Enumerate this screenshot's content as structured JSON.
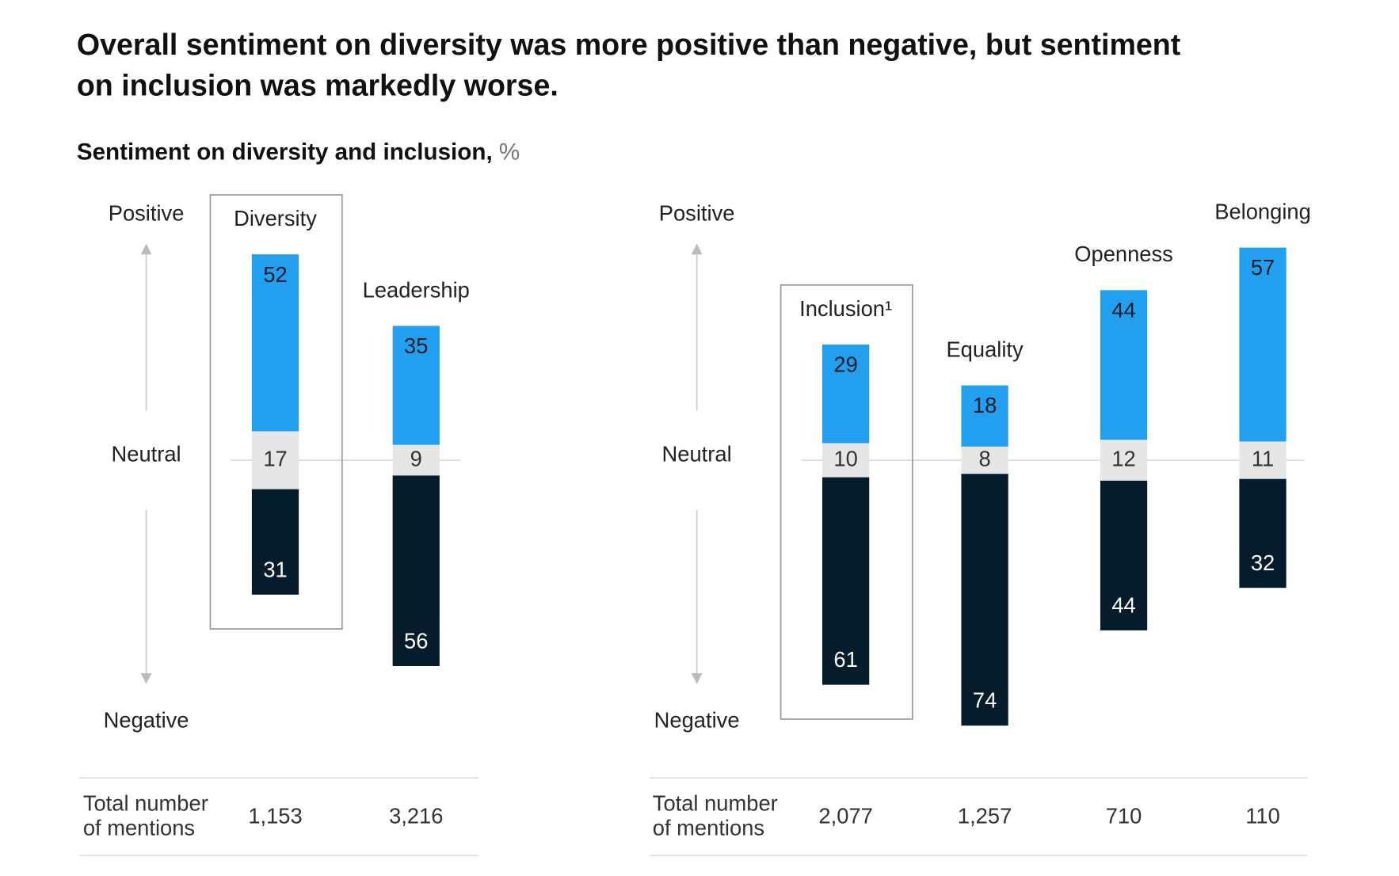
{
  "title": [
    "Overall sentiment on diversity was more positive than negative, but sentiment",
    "on inclusion was markedly worse."
  ],
  "subtitle": "Sentiment on diversity and inclusion,",
  "unit": "%",
  "chart_data": [
    {
      "type": "diverging-bar",
      "categories": [
        "Diversity",
        "Leadership"
      ],
      "highlight": 0,
      "series": [
        {
          "name": "Positive",
          "color": "#22a0ef",
          "values": [
            52,
            35
          ]
        },
        {
          "name": "Neutral",
          "color": "#e6e6e6",
          "values": [
            17,
            9
          ]
        },
        {
          "name": "Negative",
          "color": "#051c2c",
          "values": [
            31,
            56
          ]
        }
      ],
      "totals_label": [
        "Total number",
        "of mentions"
      ],
      "totals": [
        "1,153",
        "3,216"
      ]
    },
    {
      "type": "diverging-bar",
      "categories": [
        "Inclusion¹",
        "Equality",
        "Openness",
        "Belonging"
      ],
      "highlight": 0,
      "series": [
        {
          "name": "Positive",
          "color": "#22a0ef",
          "values": [
            29,
            18,
            44,
            57
          ]
        },
        {
          "name": "Neutral",
          "color": "#e6e6e6",
          "values": [
            10,
            8,
            12,
            11
          ]
        },
        {
          "name": "Negative",
          "color": "#051c2c",
          "values": [
            61,
            74,
            44,
            32
          ]
        }
      ],
      "totals_label": [
        "Total number",
        "of mentions"
      ],
      "totals": [
        "2,077",
        "1,257",
        "710",
        "110"
      ]
    }
  ]
}
